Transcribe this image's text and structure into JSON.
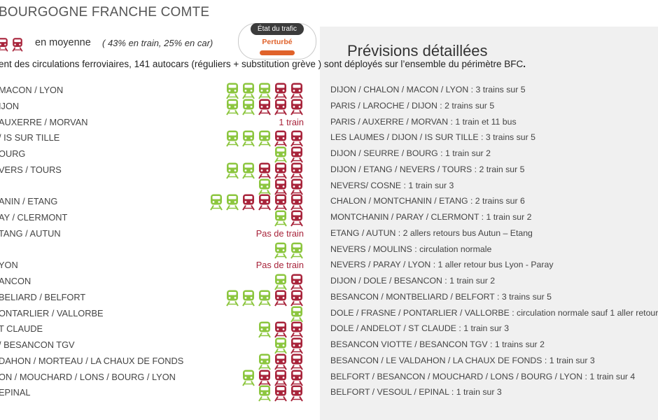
{
  "region_title": "BOURGOGNE FRANCHE COMTE",
  "average": {
    "label": "en moyenne",
    "detail": "( 43% en train, 25% en car)",
    "icons": [
      "red",
      "red"
    ]
  },
  "traffic": {
    "label": "État du trafic",
    "status": "Perturbé",
    "status_color": "#e0622a"
  },
  "previsions_title": "Prévisions détaillées",
  "intro": {
    "text": "ent des circulations ferroviaires, 141 autocars (réguliers + substitution grève ) sont déployés sur l’ensemble du périmètre BFC",
    "end": "."
  },
  "colors": {
    "green": "#8cc63f",
    "red": "#a8243b",
    "panel": "#f0f0f0",
    "note": "#a8243b"
  },
  "rows": [
    {
      "left": "MACON / LYON",
      "icons": [
        "green",
        "green",
        "green",
        "red",
        "red"
      ],
      "note": "",
      "right": "DIJON / CHALON / MACON / LYON : 3 trains sur 5"
    },
    {
      "left": "IJON",
      "icons": [
        "green",
        "green",
        "red",
        "red",
        "red"
      ],
      "note": "",
      "right": "PARIS / LAROCHE / DIJON : 2 trains sur 5"
    },
    {
      "left": "AUXERRE / MORVAN",
      "icons": [],
      "note": "1 train",
      "right": "PARIS / AUXERRE / MORVAN : 1 train  et 11 bus"
    },
    {
      "left": "/ IS SUR TILLE",
      "icons": [
        "green",
        "green",
        "green",
        "red",
        "red"
      ],
      "note": "",
      "right": "LES LAUMES / DIJON / IS SUR TILLE : 3 trains sur 5"
    },
    {
      "left": "OURG",
      "icons": [
        "green",
        "red"
      ],
      "note": "",
      "right": "DIJON / SEURRE / BOURG : 1 train sur 2"
    },
    {
      "left": "VERS / TOURS",
      "icons": [
        "green",
        "green",
        "red",
        "red",
        "red"
      ],
      "note": "",
      "right": "DIJON / ETANG / NEVERS / TOURS : 2 train sur 5"
    },
    {
      "left": "",
      "icons": [
        "green",
        "red",
        "red"
      ],
      "note": "",
      "right": "NEVERS/ COSNE : 1 train sur  3"
    },
    {
      "left": "ANIN / ETANG",
      "icons": [
        "green",
        "green",
        "red",
        "red",
        "red",
        "red"
      ],
      "note": "",
      "right": "CHALON / MONTCHANIN / ETANG : 2 trains sur 6"
    },
    {
      "left": "AY / CLERMONT",
      "icons": [
        "green",
        "red"
      ],
      "note": "",
      "right": "MONTCHANIN / PARAY / CLERMONT : 1 train sur 2"
    },
    {
      "left": "TANG / AUTUN",
      "icons": [],
      "note": "Pas de train",
      "right": "ETANG / AUTUN : 2 allers retours bus  Autun – Etang"
    },
    {
      "left": "",
      "icons": [
        "green",
        "green"
      ],
      "note": "",
      "right": "NEVERS / MOULINS : circulation normale"
    },
    {
      "left": "YON",
      "icons": [],
      "note": "Pas de train",
      "right": "NEVERS / PARAY / LYON : 1 aller retour bus Lyon - Paray"
    },
    {
      "left": "ANCON",
      "icons": [
        "green",
        "red"
      ],
      "note": "",
      "right": "DIJON / DOLE / BESANCON : 1 train sur 2"
    },
    {
      "left": "BELIARD / BELFORT",
      "icons": [
        "green",
        "green",
        "green",
        "red",
        "red"
      ],
      "note": "",
      "right": "BESANCON / MONTBELIARD / BELFORT : 3 trains sur 5"
    },
    {
      "left": "ONTARLIER / VALLORBE",
      "icons": [
        "green"
      ],
      "note": "",
      "right": "DOLE / FRASNE / PONTARLIER / VALLORBE : circulation normale sauf 1 aller retour"
    },
    {
      "left": "T CLAUDE",
      "icons": [
        "green",
        "red",
        "red"
      ],
      "note": "",
      "right": "DOLE / ANDELOT / ST CLAUDE : 1 train sur 3"
    },
    {
      "left": "/ BESANCON TGV",
      "icons": [
        "green",
        "red"
      ],
      "note": "",
      "right": "BESANCON VIOTTE / BESANCON TGV : 1 trains sur 2"
    },
    {
      "left": "DAHON / MORTEAU / LA CHAUX DE FONDS",
      "icons": [
        "green",
        "red",
        "red"
      ],
      "note": "",
      "right": "BESANCON / LE VALDAHON / LA CHAUX DE FONDS : 1 train sur 3"
    },
    {
      "left": "ON / MOUCHARD / LONS / BOURG / LYON",
      "icons": [
        "green",
        "red",
        "red",
        "red"
      ],
      "note": "",
      "right": "BELFORT / BESANCON / MOUCHARD / LONS / BOURG / LYON : 1 train sur  4"
    },
    {
      "left": "EPINAL",
      "icons": [
        "green",
        "red",
        "red"
      ],
      "note": "",
      "right": "BELFORT / VESOUL / EPINAL  : 1 train sur 3"
    }
  ]
}
